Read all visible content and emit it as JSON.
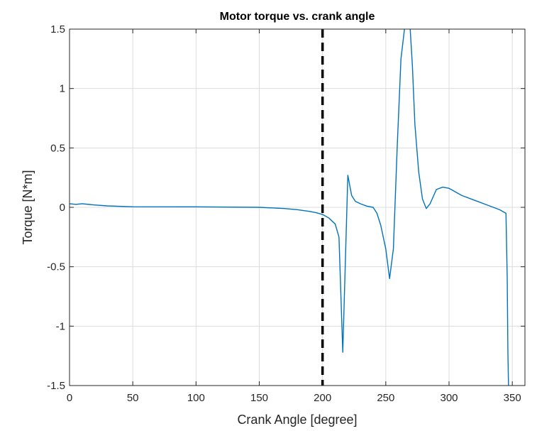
{
  "chart_data": {
    "type": "line",
    "title": "Motor torque vs. crank angle",
    "xlabel": "Crank Angle [degree]",
    "ylabel": "Torque [N*m]",
    "xlim": [
      0,
      360
    ],
    "ylim": [
      -1.5,
      1.5
    ],
    "xticks": [
      0,
      50,
      100,
      150,
      200,
      250,
      300,
      350
    ],
    "yticks": [
      -1.5,
      -1,
      -0.5,
      0,
      0.5,
      1,
      1.5
    ],
    "xtick_labels": [
      "0",
      "50",
      "100",
      "150",
      "200",
      "250",
      "300",
      "350"
    ],
    "ytick_labels": [
      "-1.5",
      "-1",
      "-0.5",
      "0",
      "0.5",
      "1",
      "1.5"
    ],
    "grid": true,
    "series": [
      {
        "color": "#0072BD",
        "x": [
          0,
          5,
          10,
          20,
          30,
          50,
          100,
          150,
          170,
          180,
          190,
          195,
          200,
          205,
          210,
          213,
          216,
          220,
          223,
          226,
          230,
          235,
          240,
          243,
          246,
          250,
          253,
          256,
          259,
          262,
          265,
          267,
          269,
          271,
          273,
          276,
          279,
          282,
          285,
          290,
          295,
          300,
          310,
          320,
          330,
          340,
          345,
          346,
          346.5,
          347
        ],
        "y": [
          0.03,
          0.025,
          0.03,
          0.02,
          0.012,
          0.005,
          0.004,
          0.0,
          -0.01,
          -0.02,
          -0.035,
          -0.045,
          -0.06,
          -0.09,
          -0.14,
          -0.25,
          -1.22,
          0.27,
          0.1,
          0.05,
          0.03,
          0.01,
          0.0,
          -0.05,
          -0.15,
          -0.35,
          -0.6,
          -0.35,
          0.5,
          1.25,
          1.52,
          1.6,
          1.55,
          1.2,
          0.7,
          0.3,
          0.07,
          -0.01,
          0.03,
          0.15,
          0.17,
          0.16,
          0.1,
          0.06,
          0.02,
          -0.02,
          -0.05,
          -0.6,
          -1.2,
          -1.5
        ]
      }
    ],
    "reference_lines": [
      {
        "orientation": "vertical",
        "x": 200,
        "style": "dashed",
        "color": "#000000"
      }
    ]
  }
}
